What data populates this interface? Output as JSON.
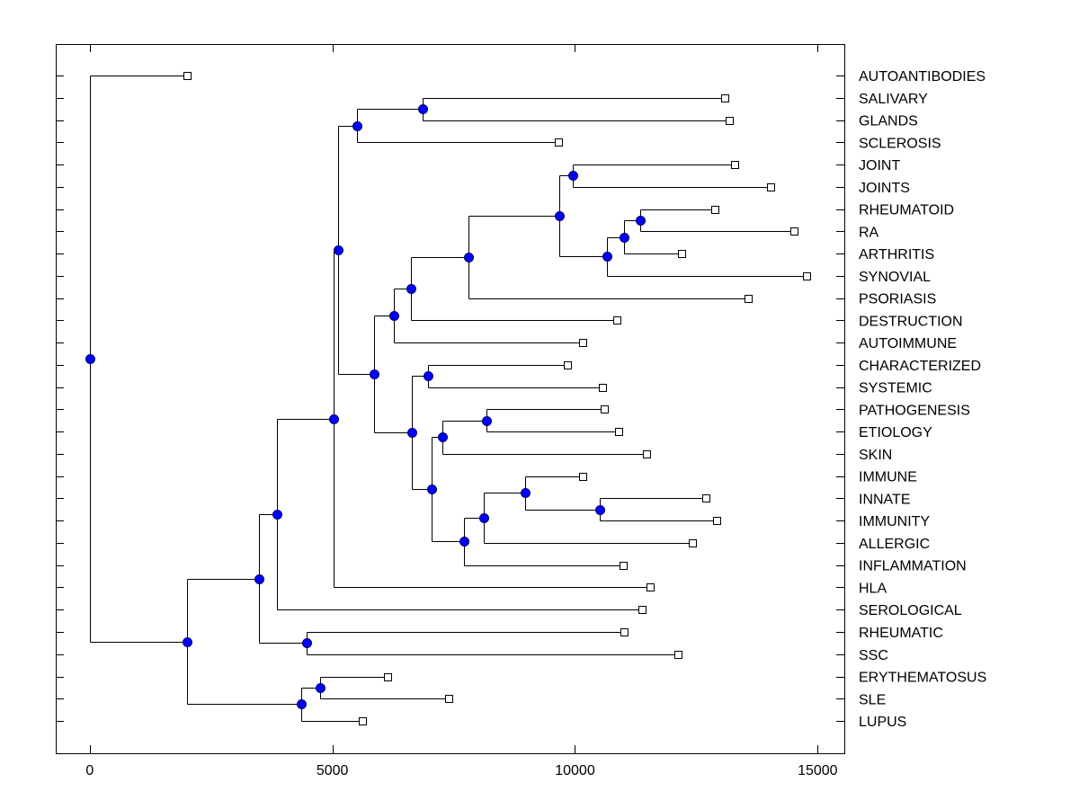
{
  "chart_data": {
    "type": "dendrogram",
    "title": "",
    "xlabel": "",
    "ylabel": "",
    "xlim": [
      -700,
      15550
    ],
    "x_ticks": [
      0,
      5000,
      10000,
      15000
    ],
    "x_tick_labels": [
      "0",
      "5000",
      "10000",
      "15000"
    ],
    "grid": false,
    "legend": "none",
    "colors": {
      "node_fill": "#0000ff",
      "node_stroke": "#00006e",
      "line": "#000000",
      "leaf_fill": "#ffffff"
    },
    "leaves": [
      {
        "label": "AUTOANTIBODIES",
        "value": 2000
      },
      {
        "label": "SALIVARY",
        "value": 13093
      },
      {
        "label": "GLANDS",
        "value": 13185
      },
      {
        "label": "SCLEROSIS",
        "value": 9667
      },
      {
        "label": "JOINT",
        "value": 13296
      },
      {
        "label": "JOINTS",
        "value": 14037
      },
      {
        "label": "RHEUMATOID",
        "value": 12889
      },
      {
        "label": "RA",
        "value": 14519
      },
      {
        "label": "ARTHRITIS",
        "value": 12204
      },
      {
        "label": "SYNOVIAL",
        "value": 14778
      },
      {
        "label": "PSORIASIS",
        "value": 13574
      },
      {
        "label": "DESTRUCTION",
        "value": 10870
      },
      {
        "label": "AUTOIMMUNE",
        "value": 10167
      },
      {
        "label": "CHARACTERIZED",
        "value": 9852
      },
      {
        "label": "SYSTEMIC",
        "value": 10574
      },
      {
        "label": "PATHOGENESIS",
        "value": 10611
      },
      {
        "label": "ETIOLOGY",
        "value": 10907
      },
      {
        "label": "SKIN",
        "value": 11481
      },
      {
        "label": "IMMUNE",
        "value": 10167
      },
      {
        "label": "INNATE",
        "value": 12704
      },
      {
        "label": "IMMUNITY",
        "value": 12926
      },
      {
        "label": "ALLERGIC",
        "value": 12426
      },
      {
        "label": "INFLAMMATION",
        "value": 11000
      },
      {
        "label": "HLA",
        "value": 11556
      },
      {
        "label": "SEROLOGICAL",
        "value": 11389
      },
      {
        "label": "RHEUMATIC",
        "value": 11019
      },
      {
        "label": "SSC",
        "value": 12130
      },
      {
        "label": "ERYTHEMATOSUS",
        "value": 6130
      },
      {
        "label": "SLE",
        "value": 7389
      },
      {
        "label": "LUPUS",
        "value": 5611
      }
    ],
    "nodes": [
      {
        "id": "n_salgl",
        "value": 6852,
        "children": [
          "L1",
          "L2"
        ]
      },
      {
        "id": "n_scl",
        "value": 5500,
        "children": [
          "n_salgl",
          "L3"
        ]
      },
      {
        "id": "n_jj",
        "value": 9963,
        "children": [
          "L4",
          "L5"
        ]
      },
      {
        "id": "n_rra",
        "value": 11352,
        "children": [
          "L6",
          "L7"
        ]
      },
      {
        "id": "n_rraa",
        "value": 11019,
        "children": [
          "n_rra",
          "L8"
        ]
      },
      {
        "id": "n_syn",
        "value": 10667,
        "children": [
          "n_rraa",
          "L9"
        ]
      },
      {
        "id": "n_jjs",
        "value": 9685,
        "children": [
          "n_jj",
          "n_syn"
        ]
      },
      {
        "id": "n_pso",
        "value": 7796,
        "children": [
          "n_jjs",
          "L10"
        ]
      },
      {
        "id": "n_des",
        "value": 6611,
        "children": [
          "n_pso",
          "L11"
        ]
      },
      {
        "id": "n_auto",
        "value": 6259,
        "children": [
          "n_des",
          "L12"
        ]
      },
      {
        "id": "n_cs",
        "value": 6963,
        "children": [
          "L13",
          "L14"
        ]
      },
      {
        "id": "n_pe",
        "value": 8167,
        "children": [
          "L15",
          "L16"
        ]
      },
      {
        "id": "n_pes",
        "value": 7259,
        "children": [
          "n_pe",
          "L17"
        ]
      },
      {
        "id": "n_ii",
        "value": 10519,
        "children": [
          "L19",
          "L20"
        ]
      },
      {
        "id": "n_iii",
        "value": 8963,
        "children": [
          "L18",
          "n_ii"
        ]
      },
      {
        "id": "n_all",
        "value": 8111,
        "children": [
          "n_iii",
          "L21"
        ]
      },
      {
        "id": "n_inf",
        "value": 7704,
        "children": [
          "n_all",
          "L22"
        ]
      },
      {
        "id": "n_skinf",
        "value": 7037,
        "children": [
          "n_pes",
          "n_inf"
        ]
      },
      {
        "id": "n_csi",
        "value": 6630,
        "children": [
          "n_cs",
          "n_skinf"
        ]
      },
      {
        "id": "n_mid",
        "value": 5852,
        "children": [
          "n_auto",
          "n_csi"
        ]
      },
      {
        "id": "n_top",
        "value": 5111,
        "children": [
          "n_scl",
          "n_mid"
        ]
      },
      {
        "id": "n_hla",
        "value": 5019,
        "children": [
          "n_top",
          "L23"
        ]
      },
      {
        "id": "n_ser",
        "value": 3852,
        "children": [
          "n_hla",
          "L24"
        ]
      },
      {
        "id": "n_rs",
        "value": 4463,
        "children": [
          "L25",
          "L26"
        ]
      },
      {
        "id": "n_big",
        "value": 3481,
        "children": [
          "n_ser",
          "n_rs"
        ]
      },
      {
        "id": "n_es",
        "value": 4741,
        "children": [
          "L27",
          "L28"
        ]
      },
      {
        "id": "n_lup",
        "value": 4352,
        "children": [
          "n_es",
          "L29"
        ]
      },
      {
        "id": "n_main",
        "value": 2000,
        "children": [
          "n_big",
          "n_lup"
        ]
      },
      {
        "id": "root",
        "value": 0,
        "children": [
          "L0",
          "n_main"
        ]
      }
    ]
  }
}
